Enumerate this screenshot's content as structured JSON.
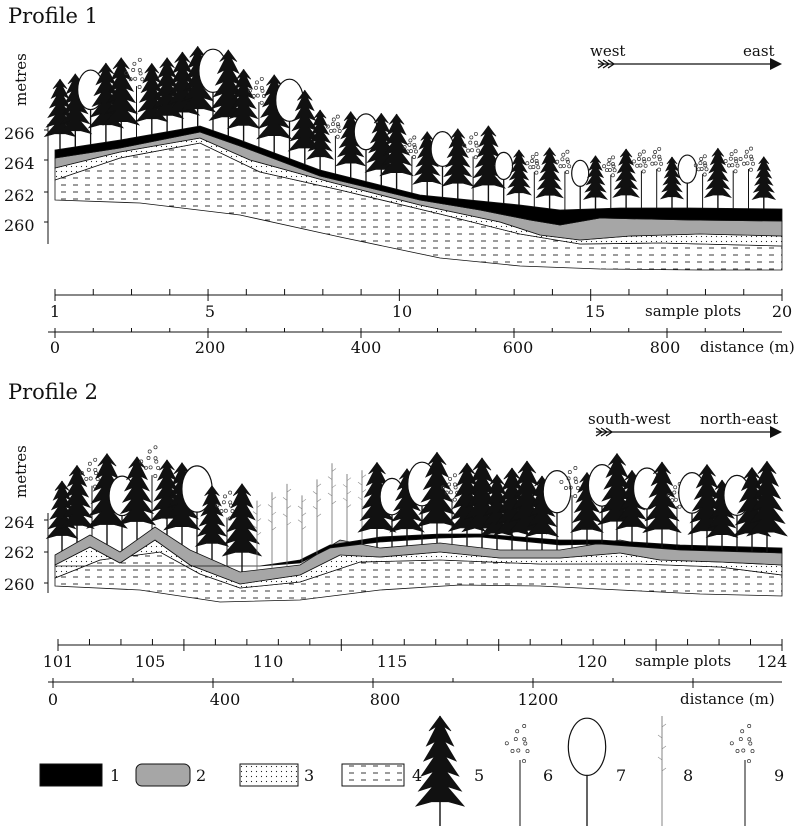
{
  "profile1": {
    "title": "Profile 1",
    "ylabel": "metres",
    "yticks": [
      "266",
      "264",
      "262",
      "260"
    ],
    "dir_from": "west",
    "dir_to": "east",
    "plot_ticks": [
      "1",
      "5",
      "10",
      "15",
      "20"
    ],
    "plot_caption": "sample plots",
    "dist_ticks": [
      "0",
      "200",
      "400",
      "600",
      "800"
    ],
    "dist_caption": "distance (m)"
  },
  "profile2": {
    "title": "Profile 2",
    "ylabel": "metres",
    "yticks": [
      "264",
      "262",
      "260"
    ],
    "dir_from": "south-west",
    "dir_to": "north-east",
    "plot_ticks": [
      "101",
      "105",
      "110",
      "115",
      "120",
      "124"
    ],
    "plot_caption": "sample plots",
    "dist_ticks": [
      "0",
      "400",
      "800",
      "1200"
    ],
    "dist_caption": "distance (m)"
  },
  "legend": [
    "1",
    "2",
    "3",
    "4",
    "5",
    "6",
    "7",
    "8",
    "9"
  ],
  "colors": {
    "layer1": "#000000",
    "layer2": "#a6a6a6",
    "line": "#111111"
  }
}
